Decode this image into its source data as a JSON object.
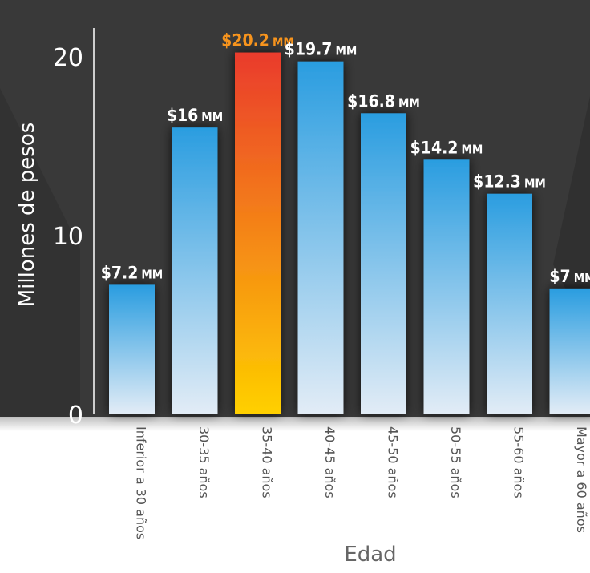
{
  "chart_data": {
    "type": "bar",
    "title": "",
    "xlabel": "Edad",
    "ylabel": "Millones de pesos",
    "ylim": [
      0,
      22
    ],
    "yticks": [
      0,
      10,
      20
    ],
    "categories": [
      "Inferior a 30 años",
      "30-35 años",
      "35-40 años",
      "40-45 años",
      "45-50 años",
      "50-55 años",
      "55-60 años",
      "Mayor a 60 años"
    ],
    "values": [
      7.2,
      16,
      20.2,
      19.7,
      16.8,
      14.2,
      12.3,
      7
    ],
    "value_labels": [
      "$7.2",
      "$16",
      "$20.2",
      "$19.7",
      "$16.8",
      "$14.2",
      "$12.3",
      "$7"
    ],
    "value_unit": "MM",
    "highlight_index": 2,
    "grid": false,
    "legend": "none"
  },
  "colors": {
    "panel_bg": "#393939",
    "panel_bg_dark": "#2a2a2a",
    "bar_top": "#2a9de0",
    "bar_bottom": "#e2ecf6",
    "highlight_top": "#ea3b2d",
    "highlight_bottom": "#ffd000",
    "label_text": "#ffffff",
    "highlight_label_text": "#f7941d",
    "axis_text": "#ffffff",
    "category_text": "#555555",
    "xlabel_text": "#666666"
  }
}
